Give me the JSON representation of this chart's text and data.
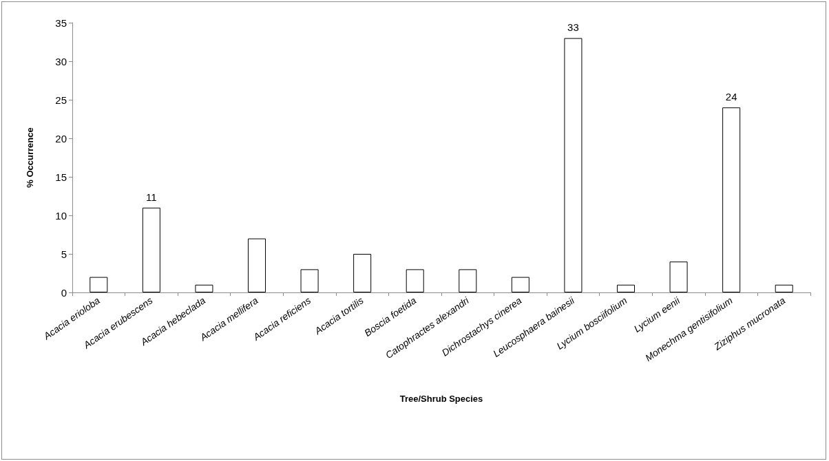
{
  "chart_data": {
    "type": "bar",
    "xlabel": "Tree/Shrub Species",
    "ylabel": "% Occurrence",
    "categories": [
      "Acacia erioloba",
      "Acacia erubescens",
      "Acacia hebeclada",
      "Acacia mellifera",
      "Acacia reficiens",
      "Acacia tortilis",
      "Boscia foetida",
      "Catophractes alexandri",
      "Dichrostachys cinerea",
      "Leucosphaera bainesii",
      "Lycium bosciifolium",
      "Lycium eenii",
      "Monechma gentisifolium",
      "Ziziphus mucronata"
    ],
    "values": [
      2,
      11,
      1,
      7,
      3,
      5,
      3,
      3,
      2,
      33,
      1,
      4,
      24,
      1
    ],
    "value_labels": [
      null,
      "11",
      null,
      null,
      null,
      null,
      null,
      null,
      null,
      "33",
      null,
      null,
      "24",
      null
    ],
    "color": "#ffffff",
    "ylim": [
      0,
      35
    ],
    "yticks": [
      0,
      5,
      10,
      15,
      20,
      25,
      30,
      35
    ],
    "grid": false
  }
}
